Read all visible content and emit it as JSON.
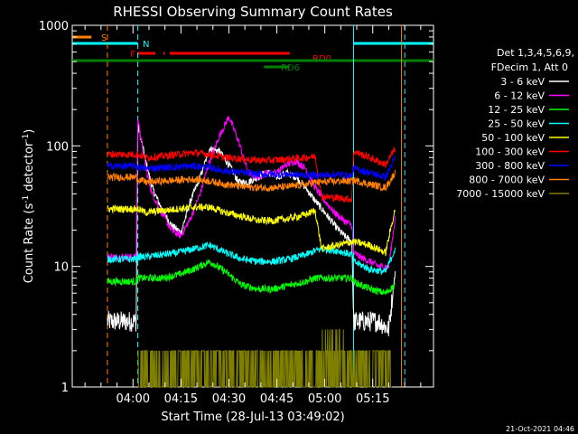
{
  "chart_data": {
    "type": "line",
    "title": "RHESSI Observing Summary Count Rates",
    "xlabel": "Start Time (28-Jul-13 03:49:02)",
    "ylabel_main": "Count Rate (s",
    "ylabel_sup1": "-1",
    "ylabel_mid": " detector",
    "ylabel_sup2": "-1",
    "ylabel_end": ")",
    "y_scale": "log",
    "ylim": [
      1,
      1000
    ],
    "xlim_minutes": [
      -8,
      105
    ],
    "x_ticks": [
      {
        "label": "04:00",
        "minutes": 11
      },
      {
        "label": "04:15",
        "minutes": 26
      },
      {
        "label": "04:30",
        "minutes": 41
      },
      {
        "label": "04:45",
        "minutes": 56
      },
      {
        "label": "05:00",
        "minutes": 71
      },
      {
        "label": "05:15",
        "minutes": 86
      }
    ],
    "y_ticks": [
      {
        "label": "1",
        "value": 1
      },
      {
        "label": "10",
        "value": 10
      },
      {
        "label": "100",
        "value": 100
      },
      {
        "label": "1000",
        "value": 1000
      }
    ],
    "legend_header": [
      "Det 1,3,4,5,6,9,",
      "FDecim 1, Att 0"
    ],
    "legend_position": "right",
    "series": [
      {
        "name": "3 - 6 keV",
        "color": "#ffffff",
        "x": [
          3,
          10,
          12,
          12.5,
          15,
          17,
          20,
          23,
          26,
          29,
          32,
          35,
          38,
          41,
          44,
          47,
          50,
          53,
          56,
          59,
          62,
          65,
          68,
          71,
          74,
          77,
          79.5,
          80,
          82,
          85,
          88,
          91,
          93
        ],
        "y": [
          3.5,
          3.5,
          3.5,
          150,
          75,
          45,
          30,
          22,
          19,
          35,
          55,
          95,
          90,
          70,
          50,
          50,
          55,
          60,
          55,
          60,
          55,
          45,
          35,
          28,
          22,
          18,
          16,
          3.5,
          3.5,
          3.5,
          3.5,
          3,
          9
        ]
      },
      {
        "name": "6 - 12 keV",
        "color": "#ff00ff",
        "x": [
          3,
          10,
          12,
          12.5,
          15,
          17,
          20,
          23,
          26,
          29,
          32,
          35,
          38,
          41,
          44,
          47,
          50,
          53,
          56,
          59,
          62,
          65,
          68,
          71,
          74,
          77,
          79.5,
          80,
          82,
          85,
          88,
          91,
          93
        ],
        "y": [
          12,
          12,
          12,
          170,
          65,
          40,
          28,
          20,
          18,
          25,
          40,
          75,
          120,
          175,
          110,
          60,
          55,
          60,
          60,
          70,
          75,
          65,
          45,
          35,
          28,
          24,
          22,
          13,
          12,
          11,
          10,
          10,
          25
        ]
      },
      {
        "name": "12 - 25 keV",
        "color": "#00ff00",
        "x": [
          3,
          10,
          12,
          12.5,
          15,
          20,
          25,
          30,
          35,
          40,
          45,
          50,
          55,
          60,
          65,
          68,
          70,
          75,
          79.5,
          80,
          85,
          90,
          93
        ],
        "y": [
          7.5,
          7.5,
          7.5,
          8,
          8,
          8,
          8.5,
          9.5,
          11,
          9,
          7,
          6.5,
          6.5,
          7,
          7.5,
          8,
          8,
          8,
          8,
          7.5,
          6.5,
          6,
          7
        ]
      },
      {
        "name": "25 - 50 keV",
        "color": "#00ffff",
        "x": [
          3,
          10,
          12,
          12.5,
          15,
          20,
          25,
          30,
          35,
          40,
          45,
          50,
          55,
          60,
          65,
          68,
          70,
          75,
          79.5,
          80,
          85,
          90,
          93
        ],
        "y": [
          11.5,
          11.5,
          11.5,
          12,
          12,
          12.5,
          13,
          14,
          15,
          13,
          11.5,
          11,
          11,
          11.5,
          12.5,
          13.5,
          14,
          13.5,
          12.5,
          11,
          9.5,
          9,
          14
        ]
      },
      {
        "name": "50 - 100 keV",
        "color": "#ffff00",
        "x": [
          3,
          10,
          12,
          12.5,
          15,
          20,
          25,
          30,
          35,
          40,
          45,
          50,
          55,
          60,
          65,
          68,
          70,
          75,
          79.5,
          80,
          85,
          90,
          93
        ],
        "y": [
          30,
          30,
          30,
          30,
          28,
          29,
          30,
          31,
          31,
          28,
          26,
          24,
          24,
          25,
          27,
          29,
          14,
          15,
          16,
          16,
          15,
          13,
          30
        ]
      },
      {
        "name": "100 - 300 keV",
        "color": "#ff0000",
        "x": [
          3,
          10,
          12,
          12.5,
          15,
          20,
          25,
          30,
          35,
          40,
          45,
          50,
          55,
          60,
          65,
          68,
          70,
          75,
          79.5,
          80,
          85,
          90,
          93
        ],
        "y": [
          85,
          85,
          85,
          85,
          80,
          82,
          85,
          88,
          85,
          80,
          78,
          76,
          76,
          78,
          80,
          82,
          38,
          37,
          36,
          90,
          80,
          70,
          95
        ]
      },
      {
        "name": "300 - 800 keV",
        "color": "#0000ff",
        "x": [
          3,
          10,
          12,
          12.5,
          15,
          20,
          25,
          30,
          35,
          40,
          45,
          50,
          55,
          60,
          65,
          68,
          70,
          75,
          79.5,
          80,
          85,
          90,
          93
        ],
        "y": [
          68,
          68,
          68,
          67,
          65,
          66,
          67,
          68,
          66,
          62,
          60,
          58,
          58,
          58,
          57,
          57,
          57,
          58,
          56,
          65,
          60,
          55,
          80
        ]
      },
      {
        "name": "800 - 7000 keV",
        "color": "#ff8000",
        "x": [
          3,
          10,
          12,
          12.5,
          15,
          20,
          25,
          30,
          35,
          40,
          45,
          50,
          55,
          60,
          65,
          68,
          70,
          75,
          79.5,
          80,
          85,
          90,
          93
        ],
        "y": [
          55,
          55,
          55,
          53,
          50,
          51,
          52,
          53,
          51,
          48,
          46,
          45,
          45,
          46,
          48,
          50,
          50,
          51,
          51,
          52,
          48,
          45,
          60
        ]
      },
      {
        "name": "7000 - 15000 keV",
        "color": "#808000",
        "x": [
          12.5,
          14,
          16,
          18,
          20,
          22,
          24,
          26,
          28,
          30,
          32,
          34,
          36,
          38,
          40,
          42,
          44,
          46,
          48,
          50,
          52,
          54,
          56,
          58,
          60,
          62,
          64,
          66,
          68,
          70,
          72,
          74,
          76,
          78,
          80,
          82,
          84,
          86,
          88,
          90,
          92
        ],
        "y": [
          1,
          2,
          1,
          2,
          1,
          2,
          1,
          2,
          1,
          2,
          1,
          2,
          1,
          2,
          1,
          2,
          1,
          1,
          1,
          1,
          1,
          1,
          1,
          1,
          1,
          1,
          1,
          2,
          1,
          2,
          3,
          2,
          3,
          2,
          1,
          1,
          1,
          2,
          1,
          2,
          1
        ]
      }
    ],
    "state_bars": [
      {
        "label": "S",
        "color": "#ff8000",
        "segments": [
          [
            -8,
            -2
          ]
        ]
      },
      {
        "label": "N",
        "color": "#00ffff",
        "segments": [
          [
            -8,
            12.5
          ],
          [
            80,
            105
          ]
        ]
      },
      {
        "label": "F",
        "color": "#ff0000",
        "segments": [
          [
            12.5,
            18
          ],
          [
            20.5,
            21
          ],
          [
            22.5,
            60
          ]
        ]
      },
      {
        "label": "RD0",
        "color": "#ff0000",
        "segments": []
      },
      {
        "label": "",
        "color": "#008000",
        "segments": [
          [
            -8,
            105
          ]
        ]
      },
      {
        "label": "RD6",
        "color": "#008000",
        "segments": [
          [
            52,
            60
          ]
        ]
      }
    ],
    "vertical_markers": [
      {
        "minutes": 3,
        "color": "#ff8000",
        "style": "dashed"
      },
      {
        "minutes": 12.5,
        "color": "#00ffff",
        "style": "dashed"
      },
      {
        "minutes": 80,
        "color": "#00ffff",
        "style": "solid"
      },
      {
        "minutes": 95,
        "color": "#ff8000",
        "style": "solid"
      },
      {
        "minutes": 96,
        "color": "#00ffff",
        "style": "dashed"
      }
    ],
    "footer_date": "21-Oct-2021 04:46"
  }
}
